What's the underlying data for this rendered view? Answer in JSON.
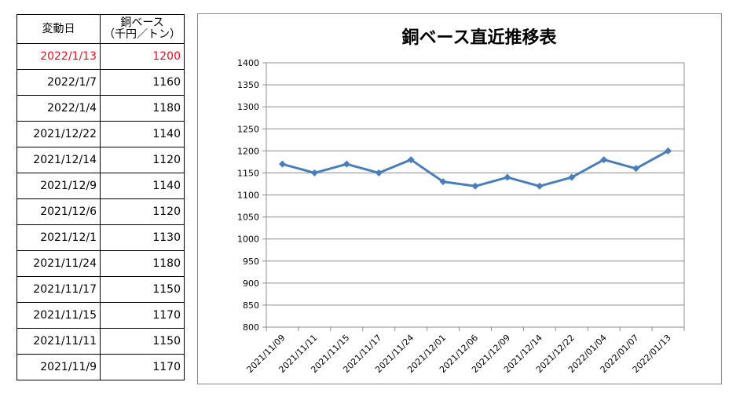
{
  "table": {
    "headers": {
      "date": "変動日",
      "price_line1": "銅ベース",
      "price_line2": "（千円／トン）"
    },
    "rows": [
      {
        "date": "2022/1/13",
        "price": "1200"
      },
      {
        "date": "2022/1/7",
        "price": "1160"
      },
      {
        "date": "2022/1/4",
        "price": "1180"
      },
      {
        "date": "2021/12/22",
        "price": "1140"
      },
      {
        "date": "2021/12/14",
        "price": "1120"
      },
      {
        "date": "2021/12/9",
        "price": "1140"
      },
      {
        "date": "2021/12/6",
        "price": "1120"
      },
      {
        "date": "2021/12/1",
        "price": "1130"
      },
      {
        "date": "2021/11/24",
        "price": "1180"
      },
      {
        "date": "2021/11/17",
        "price": "1150"
      },
      {
        "date": "2021/11/15",
        "price": "1170"
      },
      {
        "date": "2021/11/11",
        "price": "1150"
      },
      {
        "date": "2021/11/9",
        "price": "1170"
      }
    ],
    "highlight_color": "#e8101b"
  },
  "chart_data": {
    "type": "line",
    "title": "銅ベース直近推移表",
    "xlabel": "",
    "ylabel": "",
    "categories": [
      "2021/11/09",
      "2021/11/11",
      "2021/11/15",
      "2021/11/17",
      "2021/11/24",
      "2021/12/01",
      "2021/12/06",
      "2021/12/09",
      "2021/12/14",
      "2021/12/22",
      "2022/01/04",
      "2022/01/07",
      "2022/01/13"
    ],
    "series": [
      {
        "values": [
          1170,
          1150,
          1170,
          1150,
          1180,
          1130,
          1120,
          1140,
          1120,
          1140,
          1180,
          1160,
          1200
        ],
        "color": "#4a7ebb"
      }
    ],
    "ylim": [
      800,
      1400
    ],
    "yticks": [
      "800",
      "850",
      "900",
      "950",
      "1000",
      "1050",
      "1100",
      "1150",
      "1200",
      "1250",
      "1300",
      "1350",
      "1400"
    ],
    "grid": true,
    "legend": "none"
  }
}
